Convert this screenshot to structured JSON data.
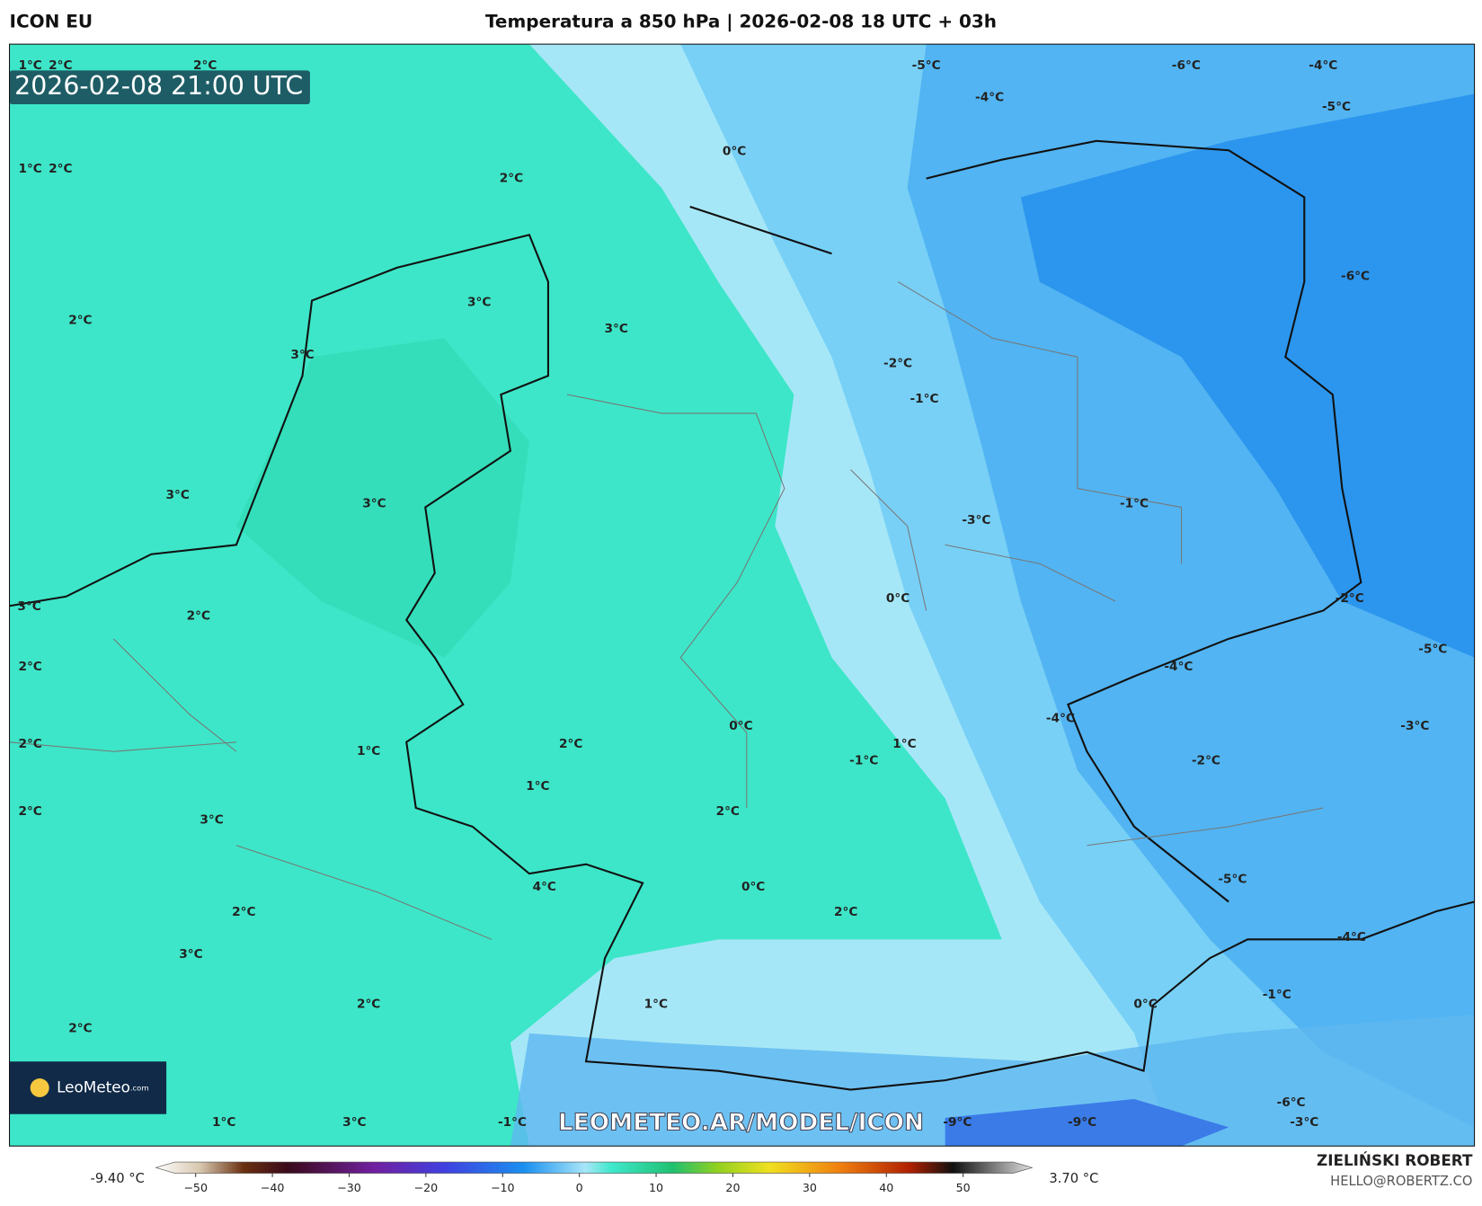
{
  "header": {
    "model": "ICON EU",
    "title": "Temperatura a 850 hPa | 2026-02-08 18 UTC + 03h"
  },
  "map": {
    "valid_time": "2026-02-08 21:00 UTC",
    "watermark": "LEOMETEO.AR/MODEL/ICON",
    "logo": {
      "name": "LeoMeteo",
      "suffix": ".com"
    },
    "labels": [
      "1°C",
      "2°C",
      "2°C",
      "1°C",
      "2°C",
      "2°C",
      "0°C",
      "-5°C",
      "-6°C",
      "-4°C",
      "-4°C",
      "-5°C",
      "2°C",
      "3°C",
      "3°C",
      "3°C",
      "-6°C",
      "-2°C",
      "-1°C",
      "3°C",
      "3°C",
      "-3°C",
      "-1°C",
      "0°C",
      "-2°C",
      "3°C",
      "2°C",
      "-5°C",
      "-4°C",
      "2°C",
      "-4°C",
      "0°C",
      "-3°C",
      "2°C",
      "1°C",
      "2°C",
      "1°C",
      "-1°C",
      "-2°C",
      "1°C",
      "2°C",
      "2°C",
      "3°C",
      "-5°C",
      "4°C",
      "0°C",
      "2°C",
      "2°C",
      "-4°C",
      "3°C",
      "-1°C",
      "0°C",
      "2°C",
      "1°C",
      "2°C",
      "-6°C",
      "1°C",
      "3°C",
      "-1°C",
      "-9°C",
      "-9°C",
      "-3°C"
    ]
  },
  "colorbar": {
    "min_label": "-9.40 °C",
    "max_label": "3.70 °C",
    "ticks": [
      {
        "value": -50,
        "label": "−50"
      },
      {
        "value": -40,
        "label": "−40"
      },
      {
        "value": -30,
        "label": "−30"
      },
      {
        "value": -20,
        "label": "−20"
      },
      {
        "value": -10,
        "label": "−10"
      },
      0,
      10,
      20,
      30,
      40,
      50
    ]
  },
  "footer": {
    "author": "ZIELIŃSKI ROBERT",
    "email": "HELLO@ROBERTZ.CO"
  }
}
